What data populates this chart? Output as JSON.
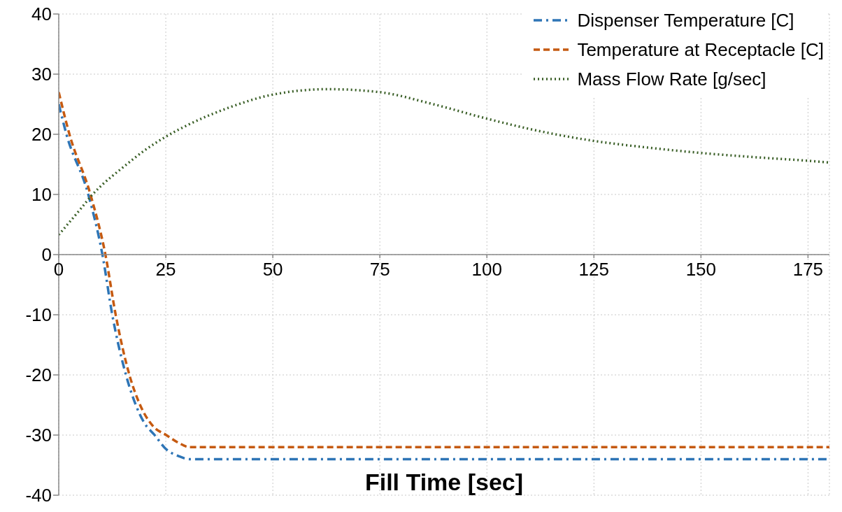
{
  "chart_data": {
    "type": "line",
    "xlabel": "Fill Time [sec]",
    "xlim": [
      0,
      180
    ],
    "xticks": [
      0,
      25,
      50,
      75,
      100,
      125,
      150,
      175
    ],
    "ylim": [
      -40,
      40
    ],
    "yticks": [
      -40,
      -30,
      -20,
      -10,
      0,
      10,
      20,
      30,
      40
    ],
    "grid": true,
    "legend": "top right",
    "marker": "none",
    "series": [
      {
        "name": "Dispenser Temperature [C]",
        "color": "#2e75b6",
        "line_style": "dashdot",
        "x": [
          0,
          1.8,
          6.9,
          10.2,
          12.5,
          15.7,
          18,
          20,
          22.4,
          25,
          28,
          30.5,
          180
        ],
        "values": [
          25,
          20,
          10,
          0,
          -10,
          -20,
          -25,
          -28,
          -30,
          -32.3,
          -33.5,
          -34,
          -34
        ]
      },
      {
        "name": "Temperature at Receptacle [C]",
        "color": "#c55a11",
        "line_style": "dashed",
        "x": [
          0,
          2.5,
          7.4,
          10.9,
          13.3,
          16.5,
          19,
          22,
          25.1,
          28,
          30.5,
          180
        ],
        "values": [
          27,
          20,
          10,
          0,
          -10,
          -20,
          -25,
          -28.5,
          -30,
          -31.3,
          -32,
          -32
        ]
      },
      {
        "name": "Mass Flow Rate [g/sec]",
        "color": "#3a5f27",
        "line_style": "dotted",
        "x": [
          0,
          5,
          7.9,
          10,
          15,
          20,
          25,
          30,
          40,
          50,
          63,
          75,
          87.5,
          100,
          112.5,
          125,
          137.5,
          150,
          162.5,
          175,
          180
        ],
        "values": [
          3.3,
          7.5,
          10,
          11.5,
          14.5,
          17.3,
          19.6,
          21.5,
          24.5,
          26.6,
          27.5,
          27,
          25,
          22.6,
          20.5,
          18.9,
          17.8,
          16.9,
          16.2,
          15.6,
          15.3
        ]
      }
    ]
  }
}
